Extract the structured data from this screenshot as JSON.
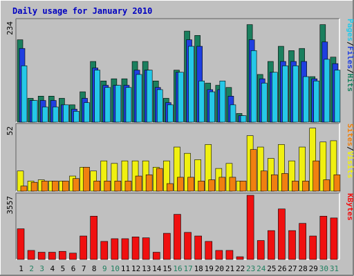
{
  "chart_data": {
    "type": "bar",
    "title": "Daily usage for January 2010",
    "categories": [
      "1",
      "2",
      "3",
      "4",
      "5",
      "6",
      "7",
      "8",
      "9",
      "10",
      "11",
      "12",
      "13",
      "14",
      "15",
      "16",
      "17",
      "18",
      "19",
      "20",
      "21",
      "22",
      "23",
      "24",
      "25",
      "26",
      "27",
      "28",
      "29",
      "30",
      "31"
    ],
    "weekend_days": [
      2,
      3,
      9,
      10,
      16,
      17,
      23,
      24,
      30,
      31
    ],
    "panels": [
      {
        "id": "hits",
        "max_label": "234",
        "ymax": 234,
        "series": [
          {
            "name": "Hits",
            "color": "#1a7f5e",
            "values": [
              190,
              55,
              60,
              60,
              55,
              40,
              70,
              140,
              95,
              100,
              100,
              140,
              140,
              95,
              55,
              120,
              210,
              200,
              90,
              85,
              80,
              20,
              225,
              110,
              140,
              175,
              165,
              170,
              105,
              225,
              150
            ]
          },
          {
            "name": "Files",
            "color": "#1f3fe0",
            "values": [
              170,
              50,
              50,
              50,
              40,
              30,
              55,
              125,
              85,
              85,
              85,
              120,
              120,
              80,
              45,
              115,
              190,
              175,
              75,
              75,
              60,
              15,
              190,
              100,
              115,
              140,
              140,
              140,
              100,
              185,
              135
            ]
          },
          {
            "name": "Pages",
            "color": "#25c8e8",
            "values": [
              130,
              50,
              35,
              35,
              40,
              25,
              45,
              120,
              80,
              85,
              80,
              110,
              120,
              75,
              40,
              115,
              175,
              95,
              70,
              95,
              40,
              15,
              165,
              90,
              115,
              130,
              130,
              105,
              95,
              145,
              120
            ]
          }
        ],
        "legend": [
          "Pages",
          "/",
          "Files",
          "/",
          "Hits"
        ],
        "legend_colors": [
          "#25c8e8",
          "#000000",
          "#1f3fe0",
          "#000000",
          "#1a7f5e"
        ]
      },
      {
        "id": "visits",
        "max_label": "52",
        "ymax": 52,
        "series": [
          {
            "name": "Visits",
            "color": "#f0f010",
            "values": [
              16,
              8,
              9,
              8,
              8,
              12,
              19,
              16,
              24,
              22,
              24,
              24,
              24,
              19,
              24,
              35,
              30,
              25,
              37,
              18,
              22,
              8,
              44,
              35,
              26,
              37,
              24,
              35,
              50,
              39,
              40
            ]
          },
          {
            "name": "Sites",
            "color": "#f08010",
            "values": [
              4,
              7,
              8,
              8,
              8,
              10,
              19,
              8,
              8,
              8,
              8,
              12,
              13,
              18,
              6,
              11,
              11,
              8,
              9,
              11,
              11,
              8,
              33,
              16,
              13,
              14,
              8,
              8,
              24,
              9,
              13
            ]
          }
        ],
        "legend": [
          "Sites",
          "/",
          "Visits"
        ],
        "legend_colors": [
          "#f08010",
          "#000000",
          "#f0f010"
        ]
      },
      {
        "id": "kbytes",
        "max_label": "3557",
        "ymax": 3557,
        "series": [
          {
            "name": "KBytes",
            "color": "#f01010",
            "values": [
              1700,
              500,
              400,
              400,
              450,
              350,
              1300,
              2400,
              1000,
              1150,
              1150,
              1250,
              1200,
              400,
              1450,
              2500,
              1500,
              1300,
              1000,
              500,
              500,
              150,
              3557,
              1050,
              1600,
              2800,
              1600,
              2000,
              1300,
              2400,
              2300
            ]
          }
        ],
        "legend": [
          "KBytes"
        ],
        "legend_colors": [
          "#f01010"
        ]
      }
    ]
  }
}
